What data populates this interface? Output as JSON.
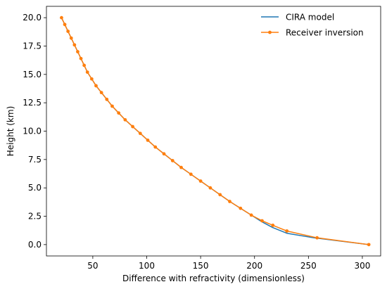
{
  "chart_data": {
    "type": "line",
    "title": "",
    "xlabel": "Difference with refractivity (dimensionless)",
    "ylabel": "Height (km)",
    "xlim": [
      7,
      317
    ],
    "ylim": [
      -1.0,
      21.0
    ],
    "x_ticks": [
      50,
      100,
      150,
      200,
      250,
      300
    ],
    "y_ticks": [
      0.0,
      2.5,
      5.0,
      7.5,
      10.0,
      12.5,
      15.0,
      17.5,
      20.0
    ],
    "y_tick_labels": [
      "0.0",
      "2.5",
      "5.0",
      "7.5",
      "10.0",
      "12.5",
      "15.0",
      "17.5",
      "20.0"
    ],
    "x_tick_labels": [
      "50",
      "100",
      "150",
      "200",
      "250",
      "300"
    ],
    "legend_position": "upper-right",
    "grid": false,
    "series": [
      {
        "name": "CIRA model",
        "color": "#1f77b4",
        "marker": "none",
        "points": [
          [
            21,
            20.0
          ],
          [
            24,
            19.4
          ],
          [
            27,
            18.8
          ],
          [
            30,
            18.2
          ],
          [
            33,
            17.6
          ],
          [
            36,
            17.0
          ],
          [
            39,
            16.4
          ],
          [
            42,
            15.8
          ],
          [
            45,
            15.2
          ],
          [
            49,
            14.6
          ],
          [
            53,
            14.0
          ],
          [
            58,
            13.4
          ],
          [
            63,
            12.8
          ],
          [
            68,
            12.2
          ],
          [
            74,
            11.6
          ],
          [
            80,
            11.0
          ],
          [
            87,
            10.4
          ],
          [
            94,
            9.8
          ],
          [
            101,
            9.2
          ],
          [
            108,
            8.6
          ],
          [
            116,
            8.0
          ],
          [
            124,
            7.4
          ],
          [
            132,
            6.8
          ],
          [
            141,
            6.2
          ],
          [
            150,
            5.6
          ],
          [
            159,
            5.0
          ],
          [
            168,
            4.4
          ],
          [
            177,
            3.8
          ],
          [
            187,
            3.2
          ],
          [
            197,
            2.6
          ],
          [
            207,
            2.0
          ],
          [
            217,
            1.5
          ],
          [
            230,
            1.0
          ],
          [
            255,
            0.6
          ],
          [
            306,
            0.0
          ]
        ]
      },
      {
        "name": "Receiver inversion",
        "color": "#ff7f0e",
        "marker": "circle",
        "points": [
          [
            21,
            20.0
          ],
          [
            24,
            19.4
          ],
          [
            27,
            18.8
          ],
          [
            30,
            18.2
          ],
          [
            33,
            17.6
          ],
          [
            36,
            17.0
          ],
          [
            39,
            16.4
          ],
          [
            42,
            15.8
          ],
          [
            45,
            15.2
          ],
          [
            49,
            14.6
          ],
          [
            53,
            14.0
          ],
          [
            58,
            13.4
          ],
          [
            63,
            12.8
          ],
          [
            68,
            12.2
          ],
          [
            74,
            11.6
          ],
          [
            80,
            11.0
          ],
          [
            87,
            10.4
          ],
          [
            94,
            9.8
          ],
          [
            101,
            9.2
          ],
          [
            108,
            8.6
          ],
          [
            116,
            8.0
          ],
          [
            124,
            7.4
          ],
          [
            132,
            6.8
          ],
          [
            141,
            6.2
          ],
          [
            150,
            5.6
          ],
          [
            159,
            5.0
          ],
          [
            168,
            4.4
          ],
          [
            177,
            3.8
          ],
          [
            187,
            3.2
          ],
          [
            197,
            2.6
          ],
          [
            207,
            2.1
          ],
          [
            217,
            1.7
          ],
          [
            230,
            1.2
          ],
          [
            258,
            0.6
          ],
          [
            306,
            0.0
          ]
        ]
      }
    ]
  }
}
